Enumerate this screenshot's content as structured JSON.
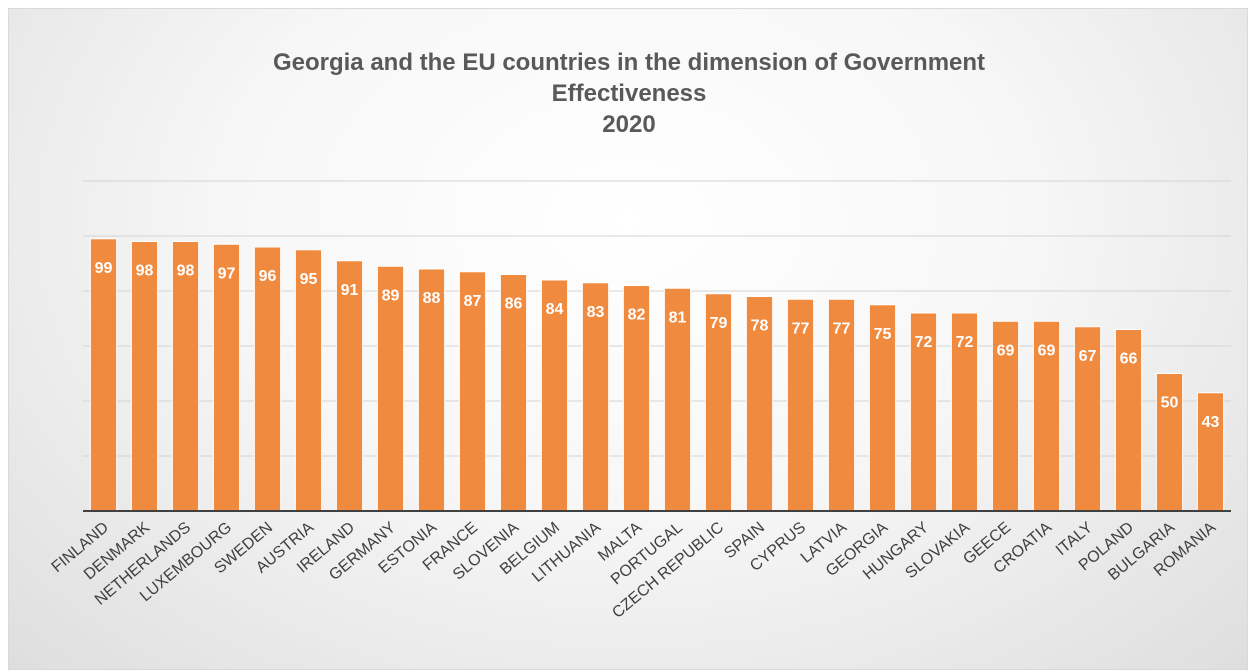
{
  "chart_data": {
    "type": "bar",
    "title": [
      "Georgia and the EU countries in the dimension of Government",
      "Effectiveness",
      "2020"
    ],
    "categories": [
      "FINLAND",
      "DENMARK",
      "NETHERLANDS",
      "LUXEMBOURG",
      "SWEDEN",
      "AUSTRIA",
      "IRELAND",
      "GERMANY",
      "ESTONIA",
      "FRANCE",
      "SLOVENIA",
      "BELGIUM",
      "LITHUANIA",
      "MALTA",
      "PORTUGAL",
      "CZECH REPUBLIC",
      "SPAIN",
      "CYPRUS",
      "LATVIA",
      "GEORGIA",
      "HUNGARY",
      "SLOVAKIA",
      "GEECE",
      "CROATIA",
      "ITALY",
      "POLAND",
      "BULGARIA",
      "ROMANIA"
    ],
    "series": [
      {
        "values": [
          99,
          98,
          98,
          97,
          96,
          95,
          91,
          89,
          88,
          87,
          86,
          84,
          83,
          82,
          81,
          79,
          78,
          77,
          77,
          75,
          72,
          72,
          69,
          69,
          67,
          66,
          50,
          43
        ]
      }
    ],
    "ylim": [
      0,
      120
    ],
    "gridlines": [
      20,
      40,
      60,
      80,
      100,
      120
    ],
    "grid": true,
    "legend": "none",
    "bar_color": "#f08a3e",
    "bar_edge_color": "#ffffff",
    "label_color": "#ffffff"
  }
}
